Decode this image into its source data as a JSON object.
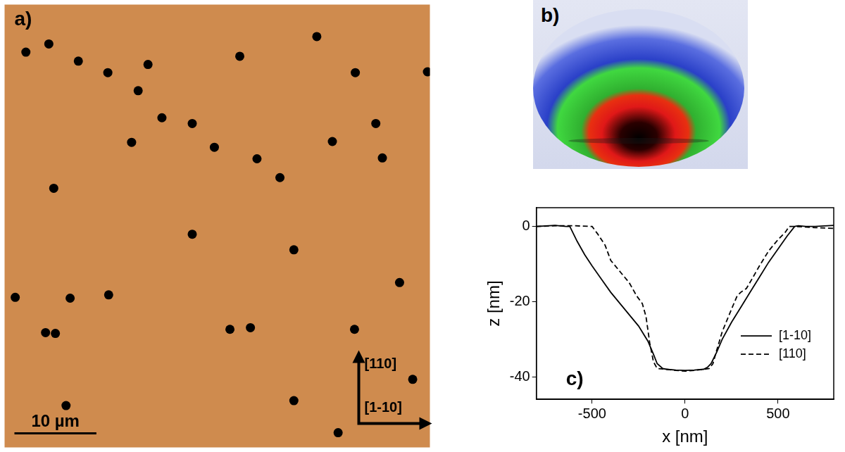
{
  "chart_data": [
    {
      "type": "scatter",
      "title": "a)",
      "x": [
        2.6,
        5.4,
        38.1,
        9.0,
        28.7,
        12.6,
        17.5,
        42.8,
        51.6,
        16.3,
        19.2,
        22.9,
        45.3,
        15.5,
        40.0,
        25.6,
        30.8,
        46.1,
        33.6,
        6.0,
        22.9,
        35.3,
        48.2,
        1.3,
        8.0,
        12.7,
        5.0,
        6.2,
        27.5,
        30.0,
        42.7,
        49.8,
        35.3,
        7.5,
        40.7
      ],
      "values": [
        48.2,
        49.2,
        50.1,
        47.1,
        47.7,
        45.7,
        46.7,
        45.7,
        45.8,
        43.5,
        40.2,
        39.5,
        39.5,
        37.2,
        37.3,
        36.6,
        35.2,
        35.3,
        32.9,
        31.6,
        26.0,
        24.1,
        20.1,
        18.3,
        18.2,
        18.6,
        14.0,
        13.9,
        14.4,
        14.6,
        14.4,
        8.3,
        5.7,
        5.1,
        1.8
      ],
      "xlim": [
        0,
        51.9
      ],
      "ylim": [
        0,
        54
      ],
      "tick_labels": false,
      "grid": false,
      "color": "#000000",
      "marker": "circle",
      "scale_bar": {
        "length": 10,
        "label": "10 µm"
      },
      "direction_labels": {
        "vertical": "[110]",
        "horizontal": "[1-10]"
      }
    },
    {
      "type": "line",
      "title": "c)",
      "x_label": "x [nm]",
      "y_label": "z [nm]",
      "xlim": [
        -800,
        800
      ],
      "xticks": [
        -500,
        0,
        500
      ],
      "ylim": [
        -46,
        5
      ],
      "yticks": [
        -40,
        -20,
        0
      ],
      "grid": false,
      "legend": "lower right",
      "series": [
        {
          "name": "[1-10]",
          "color": "#000000",
          "line_style": "solid",
          "x": [
            -800,
            -700,
            -640,
            -620,
            -580,
            -540,
            -500,
            -450,
            -400,
            -350,
            -300,
            -250,
            -200,
            -170,
            -150,
            -120,
            -100,
            -50,
            0,
            50,
            100,
            120,
            140,
            170,
            200,
            250,
            300,
            350,
            400,
            450,
            500,
            550,
            590,
            610,
            650,
            700,
            800
          ],
          "values": [
            0,
            0.3,
            0,
            0,
            -4,
            -7.5,
            -10.5,
            -14,
            -17.5,
            -20.5,
            -23.5,
            -26.5,
            -30.5,
            -34,
            -36.5,
            -37.8,
            -38,
            -38.2,
            -38.3,
            -38.2,
            -38,
            -37.5,
            -36.5,
            -33.5,
            -30,
            -25.5,
            -21.5,
            -17.5,
            -13.5,
            -9.5,
            -6,
            -2.5,
            0,
            0.2,
            0,
            0,
            0.3
          ]
        },
        {
          "name": "[110]",
          "color": "#000000",
          "line_style": "dashed",
          "x": [
            -800,
            -700,
            -600,
            -500,
            -470,
            -430,
            -400,
            -350,
            -300,
            -260,
            -230,
            -210,
            -190,
            -170,
            -150,
            -100,
            -50,
            0,
            50,
            100,
            130,
            150,
            170,
            200,
            250,
            280,
            300,
            330,
            360,
            400,
            450,
            500,
            540,
            560,
            600,
            700,
            800
          ],
          "values": [
            0,
            0.2,
            0.2,
            0,
            -2,
            -5,
            -9,
            -12,
            -15,
            -18.5,
            -20.5,
            -24,
            -31,
            -36,
            -37.8,
            -38,
            -38.3,
            -38.5,
            -38.3,
            -38,
            -37.8,
            -36.5,
            -33,
            -28,
            -22,
            -18.5,
            -17.5,
            -16.5,
            -14,
            -10.5,
            -6.5,
            -3.5,
            -1.5,
            0,
            0,
            -0.3,
            -0.5
          ]
        }
      ]
    }
  ],
  "image_panel": {
    "title": "b)"
  }
}
